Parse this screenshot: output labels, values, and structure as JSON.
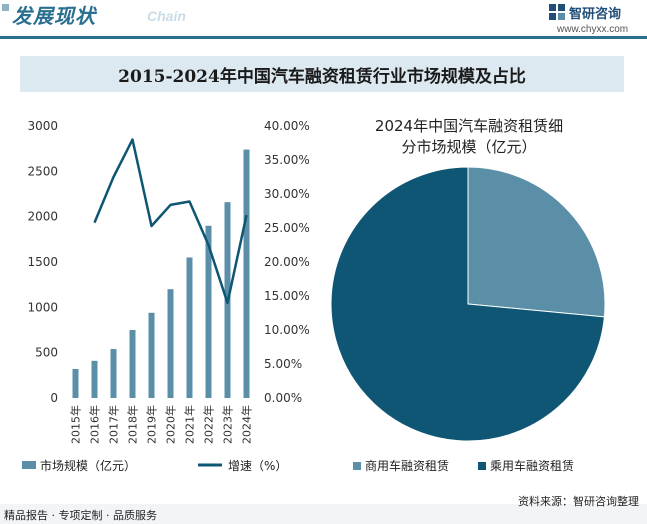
{
  "header": {
    "title": "发展现状",
    "subtitle": "Chain"
  },
  "brand": {
    "name": "智研咨询",
    "url": "www.chyxx.com"
  },
  "main_title": "2015-2024年中国汽车融资租赁行业市场规模及占比",
  "chart_data": [
    {
      "type": "bar+line",
      "categories": [
        "2015年",
        "2016年",
        "2017年",
        "2018年",
        "2019年",
        "2020年",
        "2021年",
        "2022年",
        "2023年",
        "2024年"
      ],
      "series": [
        {
          "name": "市场规模（亿元）",
          "type": "bar",
          "axis": "left",
          "values": [
            320,
            410,
            540,
            750,
            940,
            1200,
            1550,
            1900,
            2160,
            2740
          ]
        },
        {
          "name": "增速（%）",
          "type": "line",
          "axis": "right",
          "values": [
            null,
            25.8,
            32.5,
            38.0,
            25.3,
            28.4,
            28.9,
            22.5,
            14.0,
            26.9
          ]
        }
      ],
      "y_left": {
        "min": 0,
        "max": 3000,
        "ticks": [
          "0",
          "500",
          "1000",
          "1500",
          "2000",
          "2500",
          "3000"
        ]
      },
      "y_right": {
        "min": 0,
        "max": 40,
        "ticks": [
          "0.00%",
          "5.00%",
          "10.00%",
          "15.00%",
          "20.00%",
          "25.00%",
          "30.00%",
          "35.00%",
          "40.00%"
        ]
      },
      "legend": [
        "市场规模（亿元）",
        "增速（%）"
      ],
      "colors": {
        "bar": "#5b8fa8",
        "line": "#0e5673"
      }
    },
    {
      "type": "pie",
      "title_line1": "2024年中国汽车融资租赁细",
      "title_line2": "分市场规模（亿元）",
      "labels": [
        "商用车融资租赁",
        "乘用车融资租赁"
      ],
      "values": [
        26.5,
        73.5
      ],
      "colors": [
        "#5b8fa8",
        "#0e5673"
      ]
    }
  ],
  "footer": {
    "left": "精品报告 · 专项定制 · 品质服务",
    "source": "资料来源：智研咨询整理"
  }
}
